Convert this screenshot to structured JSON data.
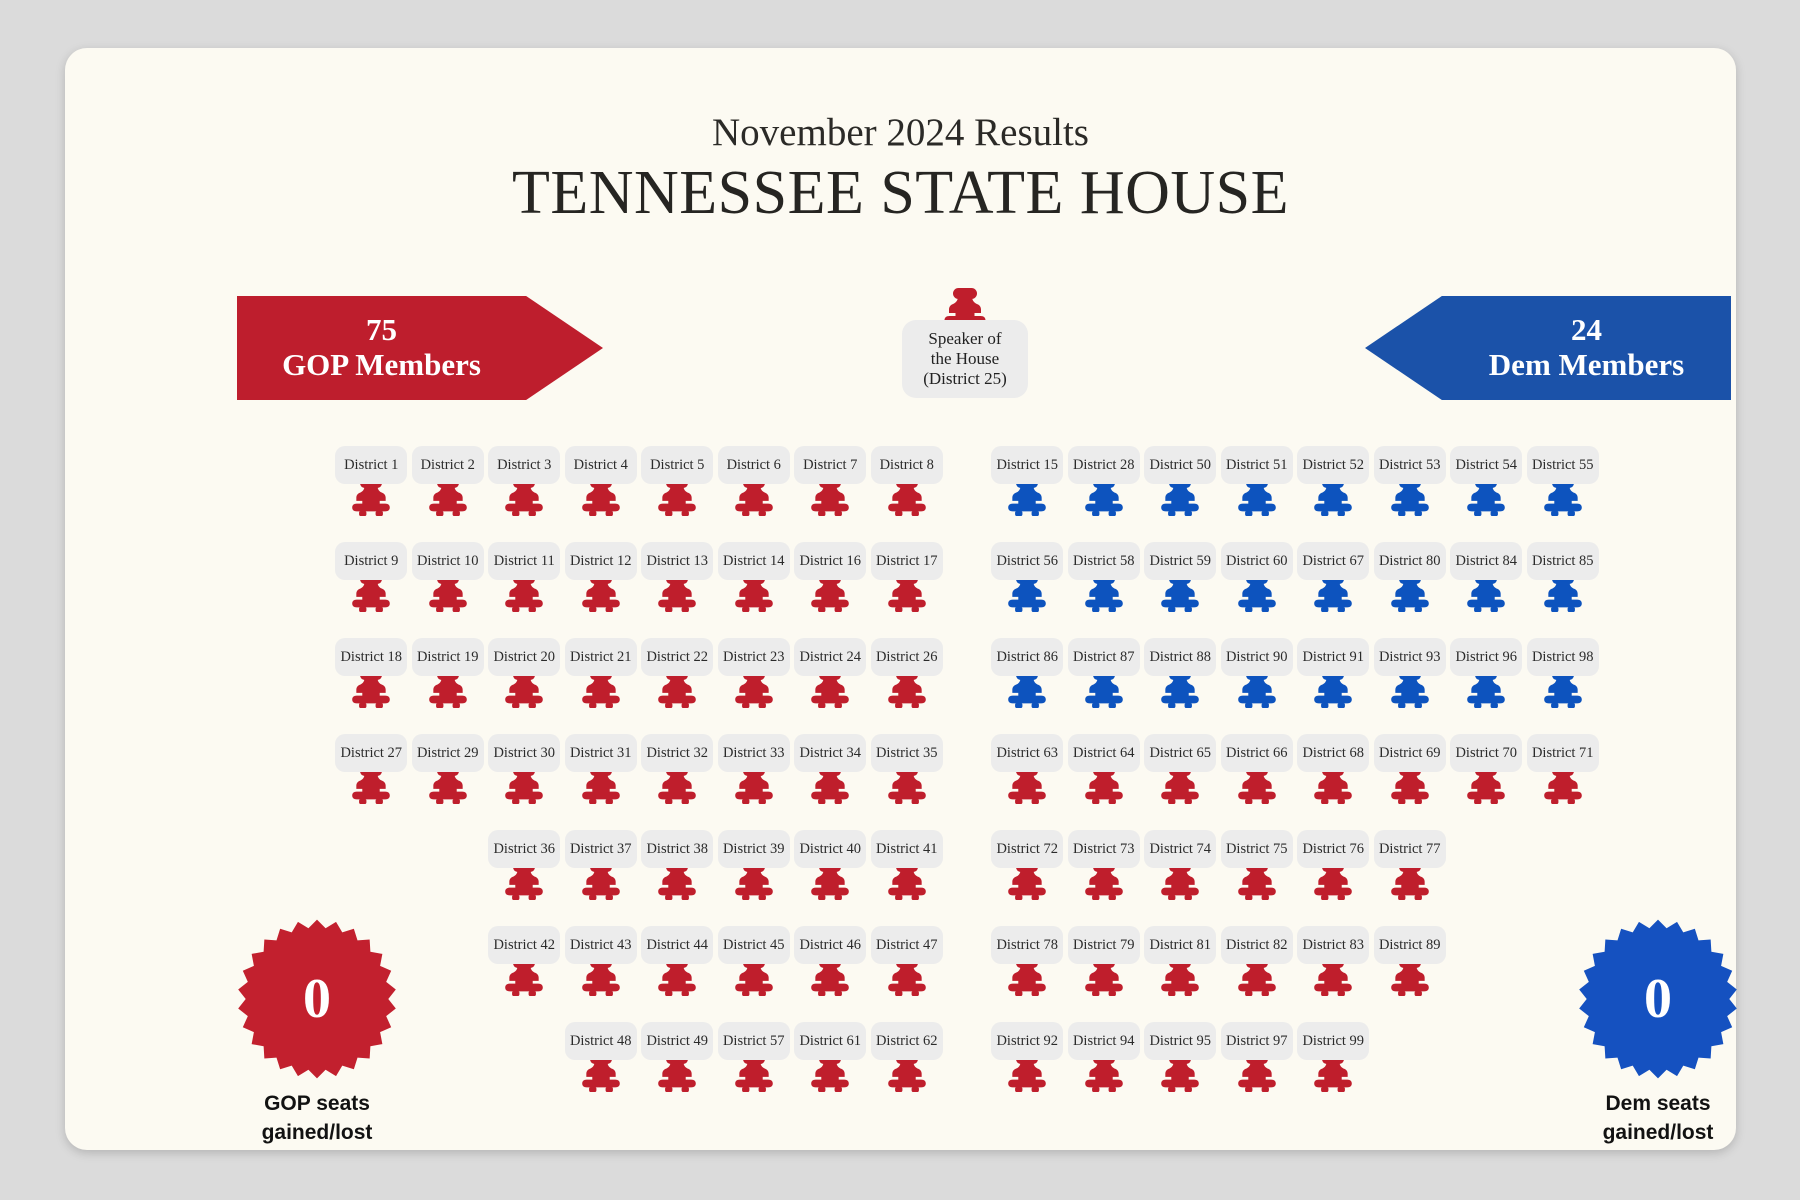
{
  "header": {
    "subtitle": "November 2024 Results",
    "title": "TENNESSEE STATE HOUSE"
  },
  "gop_banner": {
    "count": "75",
    "label": "GOP Members"
  },
  "dem_banner": {
    "count": "24",
    "label": "Dem Members"
  },
  "speaker": {
    "line1": "Speaker of",
    "line2": "the House",
    "line3": "(District 25)",
    "party": "gop"
  },
  "badges": {
    "gop": {
      "value": "0",
      "caption_line1": "GOP seats",
      "caption_line2": "gained/lost"
    },
    "dem": {
      "value": "0",
      "caption_line1": "Dem seats",
      "caption_line2": "gained/lost"
    }
  },
  "colors": {
    "gop": "#BF1E2C",
    "dem": "#0D53BE",
    "gop_banner": "#BE1E2D",
    "dem_banner": "#1B52A9",
    "gop_badge": "#C2202E",
    "dem_badge": "#1551C0",
    "card_bg": "#FCFAF2",
    "page_bg": "#DBDBDB",
    "label_bg": "#ECECEC"
  },
  "seating": {
    "left_block": [
      {
        "indent": 0,
        "seats": [
          {
            "district": "District 1",
            "party": "gop"
          },
          {
            "district": "District 2",
            "party": "gop"
          },
          {
            "district": "District 3",
            "party": "gop"
          },
          {
            "district": "District 4",
            "party": "gop"
          },
          {
            "district": "District 5",
            "party": "gop"
          },
          {
            "district": "District 6",
            "party": "gop"
          },
          {
            "district": "District 7",
            "party": "gop"
          },
          {
            "district": "District 8",
            "party": "gop"
          }
        ]
      },
      {
        "indent": 0,
        "seats": [
          {
            "district": "District 9",
            "party": "gop"
          },
          {
            "district": "District 10",
            "party": "gop"
          },
          {
            "district": "District 11",
            "party": "gop"
          },
          {
            "district": "District 12",
            "party": "gop"
          },
          {
            "district": "District 13",
            "party": "gop"
          },
          {
            "district": "District 14",
            "party": "gop"
          },
          {
            "district": "District 16",
            "party": "gop"
          },
          {
            "district": "District 17",
            "party": "gop"
          }
        ]
      },
      {
        "indent": 0,
        "seats": [
          {
            "district": "District 18",
            "party": "gop"
          },
          {
            "district": "District 19",
            "party": "gop"
          },
          {
            "district": "District 20",
            "party": "gop"
          },
          {
            "district": "District 21",
            "party": "gop"
          },
          {
            "district": "District 22",
            "party": "gop"
          },
          {
            "district": "District 23",
            "party": "gop"
          },
          {
            "district": "District 24",
            "party": "gop"
          },
          {
            "district": "District 26",
            "party": "gop"
          }
        ]
      },
      {
        "indent": 0,
        "seats": [
          {
            "district": "District 27",
            "party": "gop"
          },
          {
            "district": "District 29",
            "party": "gop"
          },
          {
            "district": "District 30",
            "party": "gop"
          },
          {
            "district": "District 31",
            "party": "gop"
          },
          {
            "district": "District 32",
            "party": "gop"
          },
          {
            "district": "District 33",
            "party": "gop"
          },
          {
            "district": "District 34",
            "party": "gop"
          },
          {
            "district": "District 35",
            "party": "gop"
          }
        ]
      },
      {
        "indent": 2,
        "seats": [
          {
            "district": "District 36",
            "party": "gop"
          },
          {
            "district": "District 37",
            "party": "gop"
          },
          {
            "district": "District 38",
            "party": "gop"
          },
          {
            "district": "District 39",
            "party": "gop"
          },
          {
            "district": "District 40",
            "party": "gop"
          },
          {
            "district": "District 41",
            "party": "gop"
          }
        ]
      },
      {
        "indent": 2,
        "seats": [
          {
            "district": "District 42",
            "party": "gop"
          },
          {
            "district": "District 43",
            "party": "gop"
          },
          {
            "district": "District 44",
            "party": "gop"
          },
          {
            "district": "District 45",
            "party": "gop"
          },
          {
            "district": "District 46",
            "party": "gop"
          },
          {
            "district": "District 47",
            "party": "gop"
          }
        ]
      },
      {
        "indent": 3,
        "seats": [
          {
            "district": "District 48",
            "party": "gop"
          },
          {
            "district": "District 49",
            "party": "gop"
          },
          {
            "district": "District 57",
            "party": "gop"
          },
          {
            "district": "District 61",
            "party": "gop"
          },
          {
            "district": "District 62",
            "party": "gop"
          }
        ]
      }
    ],
    "right_block": [
      {
        "indent": 0,
        "seats": [
          {
            "district": "District 15",
            "party": "dem"
          },
          {
            "district": "District 28",
            "party": "dem"
          },
          {
            "district": "District 50",
            "party": "dem"
          },
          {
            "district": "District 51",
            "party": "dem"
          },
          {
            "district": "District 52",
            "party": "dem"
          },
          {
            "district": "District 53",
            "party": "dem"
          },
          {
            "district": "District 54",
            "party": "dem"
          },
          {
            "district": "District 55",
            "party": "dem"
          }
        ]
      },
      {
        "indent": 0,
        "seats": [
          {
            "district": "District 56",
            "party": "dem"
          },
          {
            "district": "District 58",
            "party": "dem"
          },
          {
            "district": "District 59",
            "party": "dem"
          },
          {
            "district": "District 60",
            "party": "dem"
          },
          {
            "district": "District 67",
            "party": "dem"
          },
          {
            "district": "District 80",
            "party": "dem"
          },
          {
            "district": "District 84",
            "party": "dem"
          },
          {
            "district": "District 85",
            "party": "dem"
          }
        ]
      },
      {
        "indent": 0,
        "seats": [
          {
            "district": "District 86",
            "party": "dem"
          },
          {
            "district": "District 87",
            "party": "dem"
          },
          {
            "district": "District 88",
            "party": "dem"
          },
          {
            "district": "District 90",
            "party": "dem"
          },
          {
            "district": "District 91",
            "party": "dem"
          },
          {
            "district": "District 93",
            "party": "dem"
          },
          {
            "district": "District 96",
            "party": "dem"
          },
          {
            "district": "District 98",
            "party": "dem"
          }
        ]
      },
      {
        "indent": 0,
        "seats": [
          {
            "district": "District 63",
            "party": "gop"
          },
          {
            "district": "District 64",
            "party": "gop"
          },
          {
            "district": "District 65",
            "party": "gop"
          },
          {
            "district": "District 66",
            "party": "gop"
          },
          {
            "district": "District 68",
            "party": "gop"
          },
          {
            "district": "District 69",
            "party": "gop"
          },
          {
            "district": "District 70",
            "party": "gop"
          },
          {
            "district": "District 71",
            "party": "gop"
          }
        ]
      },
      {
        "indent": 0,
        "seats": [
          {
            "district": "District 72",
            "party": "gop"
          },
          {
            "district": "District 73",
            "party": "gop"
          },
          {
            "district": "District 74",
            "party": "gop"
          },
          {
            "district": "District 75",
            "party": "gop"
          },
          {
            "district": "District 76",
            "party": "gop"
          },
          {
            "district": "District 77",
            "party": "gop"
          }
        ]
      },
      {
        "indent": 0,
        "seats": [
          {
            "district": "District 78",
            "party": "gop"
          },
          {
            "district": "District 79",
            "party": "gop"
          },
          {
            "district": "District 81",
            "party": "gop"
          },
          {
            "district": "District 82",
            "party": "gop"
          },
          {
            "district": "District 83",
            "party": "gop"
          },
          {
            "district": "District 89",
            "party": "gop"
          }
        ]
      },
      {
        "indent": 0,
        "seats": [
          {
            "district": "District 92",
            "party": "gop"
          },
          {
            "district": "District 94",
            "party": "gop"
          },
          {
            "district": "District 95",
            "party": "gop"
          },
          {
            "district": "District 97",
            "party": "gop"
          },
          {
            "district": "District 99",
            "party": "gop"
          }
        ]
      }
    ]
  }
}
